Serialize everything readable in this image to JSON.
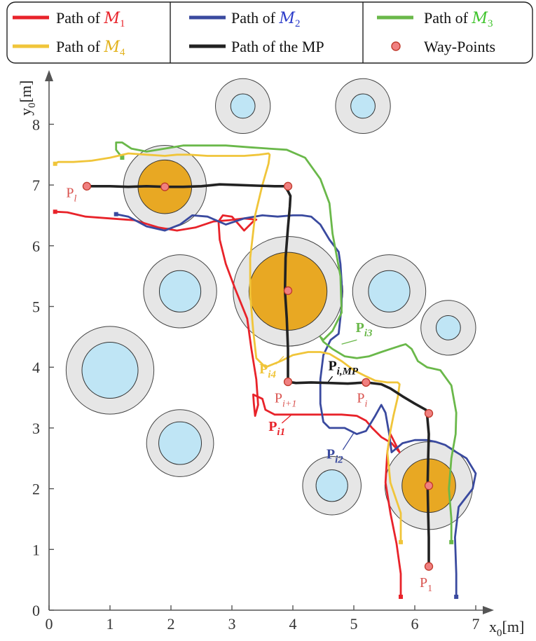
{
  "chart_data": {
    "type": "line",
    "xlabel": "x",
    "xlabel_sub": "0",
    "xlabel_unit": "[m]",
    "ylabel": "y",
    "ylabel_sub": "0",
    "ylabel_unit": "[m]",
    "xlim": [
      0,
      7
    ],
    "ylim": [
      0,
      8.9
    ],
    "xticks": [
      0,
      1,
      2,
      3,
      4,
      5,
      6,
      7
    ],
    "yticks": [
      0,
      1,
      2,
      3,
      4,
      5,
      6,
      7,
      8
    ],
    "grid": false,
    "legend": {
      "placement": "top",
      "entries": [
        {
          "name": "Path of ",
          "math": "M",
          "sub": "1",
          "color": "#e8232a",
          "mathColor": "#e8232a"
        },
        {
          "name": "Path of ",
          "math": "M",
          "sub": "2",
          "color": "#3a4a9f",
          "mathColor": "#2b3bc9"
        },
        {
          "name": "Path of ",
          "math": "M",
          "sub": "3",
          "color": "#6ab84a",
          "mathColor": "#3fc42c"
        },
        {
          "name": "Path of ",
          "math": "M",
          "sub": "4",
          "color": "#f0c53a",
          "mathColor": "#e2b21c"
        },
        {
          "name": "Path of the MP",
          "color": "#222222"
        },
        {
          "name": "Way-Points",
          "marker": "circle",
          "color": "#f08080"
        }
      ]
    },
    "obstacles": [
      {
        "x": 3.18,
        "y": 8.3,
        "r_outer": 0.45,
        "r_inner": 0.2,
        "color": "#bfe5f5"
      },
      {
        "x": 5.15,
        "y": 8.3,
        "r_outer": 0.45,
        "r_inner": 0.2,
        "color": "#bfe5f5"
      },
      {
        "x": 1.9,
        "y": 6.97,
        "r_outer": 0.68,
        "r_inner": 0.44,
        "color": "#e8a823"
      },
      {
        "x": 2.15,
        "y": 5.25,
        "r_outer": 0.6,
        "r_inner": 0.34,
        "color": "#bfe5f5"
      },
      {
        "x": 3.92,
        "y": 5.25,
        "r_outer": 0.9,
        "r_inner": 0.64,
        "color": "#e8a823"
      },
      {
        "x": 5.58,
        "y": 5.25,
        "r_outer": 0.6,
        "r_inner": 0.34,
        "color": "#bfe5f5"
      },
      {
        "x": 6.55,
        "y": 4.65,
        "r_outer": 0.45,
        "r_inner": 0.2,
        "color": "#bfe5f5"
      },
      {
        "x": 1.0,
        "y": 3.95,
        "r_outer": 0.72,
        "r_inner": 0.46,
        "color": "#bfe5f5"
      },
      {
        "x": 2.15,
        "y": 2.75,
        "r_outer": 0.55,
        "r_inner": 0.35,
        "color": "#bfe5f5"
      },
      {
        "x": 4.64,
        "y": 2.05,
        "r_outer": 0.48,
        "r_inner": 0.26,
        "color": "#bfe5f5"
      },
      {
        "x": 6.23,
        "y": 2.05,
        "r_outer": 0.72,
        "r_inner": 0.44,
        "color": "#e8a823"
      }
    ],
    "series": [
      {
        "name": "Path of M1",
        "color": "#e8232a",
        "x": [
          5.77,
          5.77,
          5.7,
          5.6,
          5.52,
          5.55,
          5.6,
          5.75,
          5.62,
          5.45,
          5.3,
          5.2,
          5.05,
          4.8,
          4.5,
          4.2,
          4.0,
          3.7,
          3.55,
          3.5,
          3.35,
          3.36,
          3.38,
          3.43,
          3.4,
          3.32,
          3.25,
          3.05,
          2.9,
          2.8,
          2.78,
          2.85,
          3.0,
          3.2,
          3.35,
          3.4,
          3.2,
          2.95,
          2.7,
          2.4,
          2.1,
          1.8,
          1.4,
          1.0,
          0.6,
          0.3,
          0.1
        ],
        "y": [
          0.22,
          0.6,
          1.1,
          1.6,
          2.1,
          2.6,
          2.9,
          2.6,
          2.75,
          2.85,
          3.0,
          3.12,
          3.2,
          3.22,
          3.22,
          3.22,
          3.22,
          3.22,
          3.3,
          3.48,
          3.55,
          3.4,
          3.2,
          3.38,
          3.8,
          4.3,
          4.8,
          5.3,
          5.7,
          6.1,
          6.4,
          6.5,
          6.48,
          6.25,
          6.4,
          6.43,
          6.45,
          6.42,
          6.4,
          6.3,
          6.25,
          6.3,
          6.42,
          6.45,
          6.48,
          6.55,
          6.56
        ]
      },
      {
        "name": "Path of M2",
        "color": "#3a4a9f",
        "x": [
          6.68,
          6.68,
          6.66,
          6.72,
          6.95,
          7.0,
          6.85,
          6.65,
          6.5,
          6.35,
          6.2,
          6.0,
          5.8,
          5.62,
          5.58,
          5.52,
          5.45,
          5.35,
          5.2,
          5.05,
          4.85,
          4.6,
          4.5,
          4.45,
          4.45,
          4.5,
          4.62,
          4.75,
          4.8,
          4.8,
          4.78,
          4.75,
          4.6,
          4.45,
          4.3,
          4.15,
          4.0,
          3.75,
          3.5,
          3.2,
          2.9,
          2.6,
          2.35,
          2.15,
          1.9,
          1.6,
          1.3,
          1.1
        ],
        "y": [
          0.22,
          0.6,
          1.2,
          1.7,
          2.0,
          2.25,
          2.5,
          2.62,
          2.72,
          2.77,
          2.8,
          2.8,
          2.75,
          2.6,
          2.9,
          3.25,
          3.38,
          3.2,
          2.95,
          2.9,
          3.0,
          3.0,
          3.1,
          3.4,
          3.8,
          4.2,
          4.45,
          4.55,
          5.0,
          5.4,
          5.7,
          5.9,
          6.1,
          6.35,
          6.48,
          6.5,
          6.5,
          6.48,
          6.5,
          6.45,
          6.35,
          6.48,
          6.5,
          6.35,
          6.25,
          6.32,
          6.48,
          6.52
        ]
      },
      {
        "name": "Path of M3",
        "color": "#6ab84a",
        "x": [
          6.6,
          6.6,
          6.56,
          6.6,
          6.67,
          6.68,
          6.6,
          6.42,
          6.2,
          6.05,
          5.95,
          5.85,
          5.75,
          5.6,
          5.45,
          5.25,
          5.05,
          4.85,
          4.65,
          4.5,
          4.45,
          4.5,
          4.65,
          4.8,
          4.78,
          4.65,
          4.6,
          4.45,
          4.2,
          3.9,
          3.6,
          3.3,
          2.9,
          2.5,
          2.2,
          1.9,
          1.6,
          1.35,
          1.2,
          1.1,
          1.1,
          1.2
        ],
        "y": [
          1.12,
          1.5,
          2.0,
          2.5,
          2.9,
          3.25,
          3.7,
          3.95,
          4.0,
          4.1,
          4.3,
          4.38,
          4.35,
          4.3,
          4.25,
          4.18,
          4.15,
          4.18,
          4.3,
          4.42,
          4.5,
          4.45,
          4.6,
          4.9,
          5.5,
          6.2,
          6.7,
          7.1,
          7.45,
          7.58,
          7.6,
          7.62,
          7.65,
          7.65,
          7.65,
          7.6,
          7.55,
          7.6,
          7.7,
          7.7,
          7.58,
          7.45
        ]
      },
      {
        "name": "Path of M4",
        "color": "#f0c53a",
        "x": [
          5.77,
          5.77,
          5.6,
          5.55,
          5.6,
          5.65,
          5.72,
          5.75,
          5.72,
          5.55,
          5.35,
          5.2,
          5.0,
          4.8,
          4.6,
          4.45,
          4.25,
          4.0,
          3.8,
          3.55,
          3.4,
          3.35,
          3.3,
          3.3,
          3.38,
          3.5,
          3.6,
          3.62,
          3.6,
          3.45,
          3.2,
          2.9,
          2.6,
          2.3,
          2.1,
          1.9,
          1.6,
          1.3,
          1.0,
          0.7,
          0.4,
          0.15,
          0.1
        ],
        "y": [
          1.12,
          1.6,
          2.1,
          2.6,
          2.95,
          3.2,
          3.5,
          3.72,
          3.75,
          3.75,
          3.78,
          3.85,
          3.95,
          4.1,
          4.22,
          4.25,
          4.25,
          4.2,
          4.1,
          4.0,
          4.15,
          4.6,
          5.2,
          5.8,
          6.5,
          7.0,
          7.35,
          7.5,
          7.52,
          7.5,
          7.48,
          7.48,
          7.48,
          7.5,
          7.5,
          7.48,
          7.5,
          7.52,
          7.45,
          7.4,
          7.38,
          7.38,
          7.35
        ]
      },
      {
        "name": "Path of the MP",
        "color": "#222222",
        "x": [
          6.23,
          6.23,
          6.22,
          6.21,
          6.22,
          6.23,
          6.2,
          6.18,
          6.0,
          5.8,
          5.6,
          5.45,
          5.2,
          4.9,
          4.6,
          4.3,
          4.05,
          3.92,
          3.92,
          3.9,
          3.87,
          3.88,
          3.92,
          3.95,
          3.96,
          3.92,
          3.88,
          3.9,
          3.7,
          3.4,
          3.1,
          2.8,
          2.5,
          2.2,
          1.9,
          1.6,
          1.3,
          1.0,
          0.8,
          0.62
        ],
        "y": [
          0.72,
          1.2,
          1.6,
          2.05,
          2.5,
          2.9,
          3.24,
          3.3,
          3.4,
          3.52,
          3.65,
          3.72,
          3.75,
          3.73,
          3.74,
          3.75,
          3.74,
          3.76,
          4.3,
          4.8,
          5.26,
          5.8,
          6.3,
          6.65,
          6.82,
          6.9,
          6.96,
          6.98,
          6.98,
          6.99,
          7.0,
          7.01,
          6.98,
          6.97,
          6.97,
          6.98,
          6.97,
          6.98,
          6.98,
          6.98
        ]
      }
    ],
    "waypoints": [
      {
        "x": 0.62,
        "y": 6.98
      },
      {
        "x": 1.9,
        "y": 6.97
      },
      {
        "x": 3.92,
        "y": 6.98
      },
      {
        "x": 3.92,
        "y": 5.26
      },
      {
        "x": 3.92,
        "y": 3.76
      },
      {
        "x": 5.2,
        "y": 3.75
      },
      {
        "x": 6.23,
        "y": 3.24
      },
      {
        "x": 6.23,
        "y": 2.05
      },
      {
        "x": 6.23,
        "y": 0.72
      }
    ],
    "waypoint_labels": [
      {
        "text": "P",
        "sub": "l",
        "italicSub": true,
        "x": 0.28,
        "y": 6.8
      },
      {
        "text": "P",
        "sub": "i+1",
        "italicSub": true,
        "x": 3.7,
        "y": 3.42
      },
      {
        "text": "P",
        "sub": "i",
        "italicSub": true,
        "x": 5.05,
        "y": 3.42
      },
      {
        "text": "P",
        "sub": "1",
        "italicSub": false,
        "x": 6.08,
        "y": 0.38
      }
    ],
    "annotations": [
      {
        "text": "P",
        "sub": "i1",
        "color": "#e8232a",
        "x": 3.6,
        "y": 2.95,
        "lx1": 3.82,
        "ly1": 3.08,
        "lx2": 3.98,
        "ly2": 3.22
      },
      {
        "text": "P",
        "sub": "i2",
        "color": "#3a4a9f",
        "x": 4.55,
        "y": 2.5,
        "lx1": 4.82,
        "ly1": 2.64,
        "lx2": 5.0,
        "ly2": 2.92
      },
      {
        "text": "P",
        "sub": "i3",
        "color": "#6ab84a",
        "x": 5.03,
        "y": 4.58,
        "lx1": 5.05,
        "ly1": 4.45,
        "lx2": 4.8,
        "ly2": 4.38
      },
      {
        "text": "P",
        "sub": "i4",
        "color": "#f0c53a",
        "x": 3.45,
        "y": 3.9,
        "lx1": 3.72,
        "ly1": 4.05,
        "lx2": 3.85,
        "ly2": 4.18
      },
      {
        "text": "P",
        "sub": "i,MP",
        "color": "#111111",
        "x": 4.58,
        "y": 3.95,
        "lx1": 4.65,
        "ly1": 3.85,
        "lx2": 4.58,
        "ly2": 3.76
      }
    ]
  }
}
